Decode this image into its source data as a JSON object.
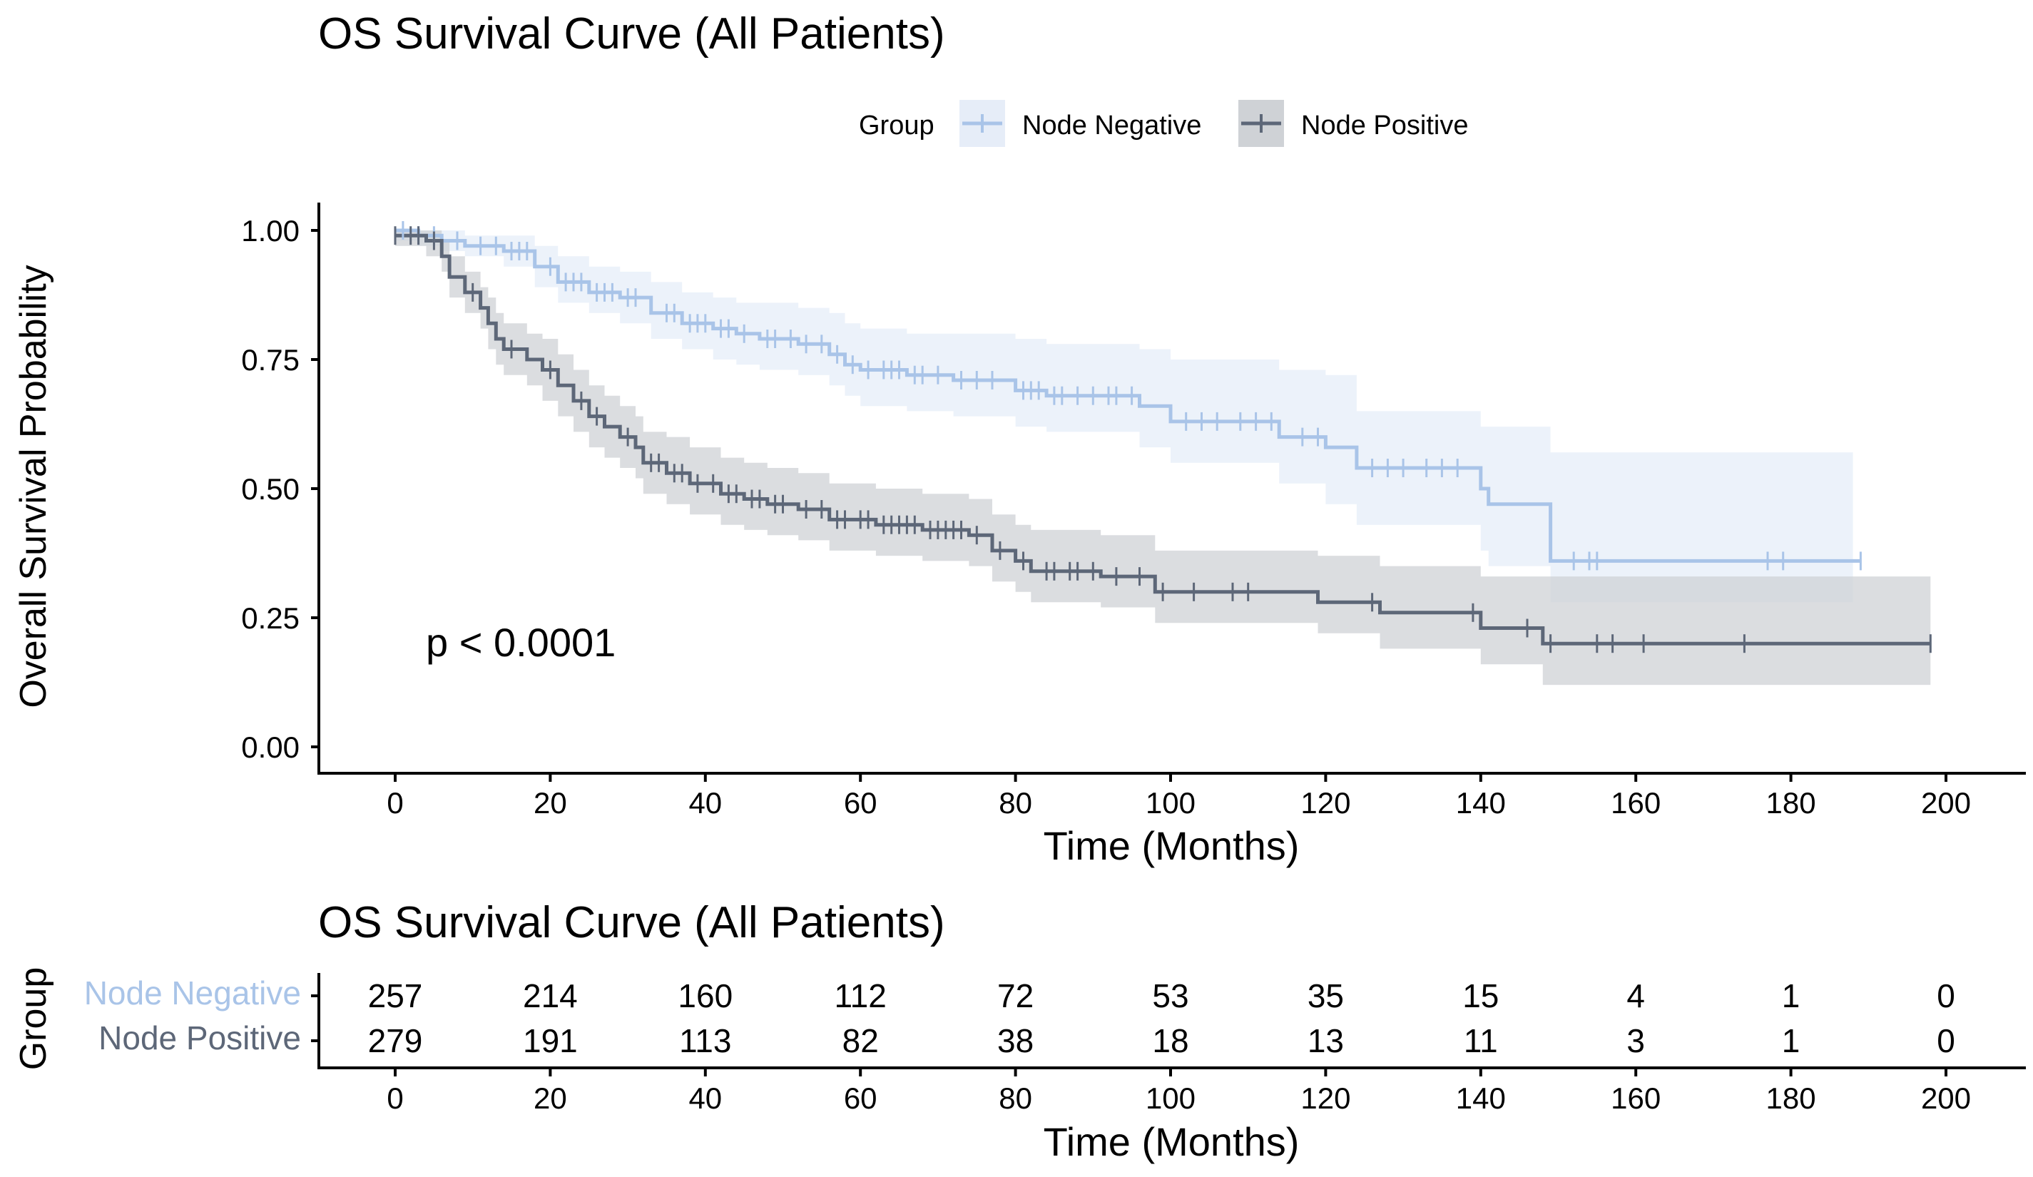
{
  "chart_data": [
    {
      "type": "line",
      "subtype": "kaplan-meier",
      "title": "OS Survival Curve (All Patients)",
      "xlabel": "Time (Months)",
      "ylabel": "Overall Survival Probability",
      "xlim": [
        0,
        200
      ],
      "ylim": [
        0,
        1
      ],
      "x_ticks": [
        "0",
        "20",
        "40",
        "60",
        "80",
        "100",
        "120",
        "140",
        "160",
        "180",
        "200"
      ],
      "y_ticks": [
        "0.00",
        "0.25",
        "0.50",
        "0.75",
        "1.00"
      ],
      "legend": {
        "title": "Group",
        "position": "top",
        "entries": [
          "Node Negative",
          "Node Positive"
        ]
      },
      "annotation": "p < 0.0001",
      "grid": false,
      "series": [
        {
          "name": "Node Negative",
          "color": "#a9c4e8",
          "band_color": "#e6edf8",
          "points": [
            [
              0,
              1.0
            ],
            [
              3,
              0.99
            ],
            [
              6,
              0.98
            ],
            [
              9,
              0.97
            ],
            [
              14,
              0.96
            ],
            [
              18,
              0.93
            ],
            [
              21,
              0.9
            ],
            [
              25,
              0.88
            ],
            [
              29,
              0.87
            ],
            [
              33,
              0.84
            ],
            [
              37,
              0.82
            ],
            [
              41,
              0.81
            ],
            [
              44,
              0.8
            ],
            [
              47,
              0.79
            ],
            [
              52,
              0.78
            ],
            [
              56,
              0.76
            ],
            [
              58,
              0.74
            ],
            [
              60,
              0.73
            ],
            [
              66,
              0.72
            ],
            [
              72,
              0.71
            ],
            [
              80,
              0.69
            ],
            [
              84,
              0.68
            ],
            [
              96,
              0.66
            ],
            [
              100,
              0.63
            ],
            [
              114,
              0.6
            ],
            [
              120,
              0.58
            ],
            [
              124,
              0.54
            ],
            [
              140,
              0.5
            ],
            [
              141,
              0.47
            ],
            [
              149,
              0.36
            ],
            [
              189,
              0.36
            ]
          ],
          "ci_upper": [
            [
              0,
              1.0
            ],
            [
              3,
              1.0
            ],
            [
              6,
              1.0
            ],
            [
              9,
              0.99
            ],
            [
              14,
              0.99
            ],
            [
              18,
              0.97
            ],
            [
              21,
              0.95
            ],
            [
              25,
              0.93
            ],
            [
              29,
              0.92
            ],
            [
              33,
              0.9
            ],
            [
              37,
              0.88
            ],
            [
              41,
              0.87
            ],
            [
              44,
              0.86
            ],
            [
              47,
              0.86
            ],
            [
              52,
              0.85
            ],
            [
              56,
              0.84
            ],
            [
              58,
              0.82
            ],
            [
              60,
              0.81
            ],
            [
              66,
              0.8
            ],
            [
              72,
              0.8
            ],
            [
              80,
              0.79
            ],
            [
              84,
              0.78
            ],
            [
              96,
              0.77
            ],
            [
              100,
              0.75
            ],
            [
              114,
              0.73
            ],
            [
              120,
              0.72
            ],
            [
              124,
              0.65
            ],
            [
              140,
              0.62
            ],
            [
              141,
              0.62
            ],
            [
              149,
              0.57
            ],
            [
              188,
              0.57
            ]
          ],
          "ci_lower": [
            [
              0,
              0.98
            ],
            [
              3,
              0.97
            ],
            [
              6,
              0.96
            ],
            [
              9,
              0.95
            ],
            [
              14,
              0.93
            ],
            [
              18,
              0.89
            ],
            [
              21,
              0.86
            ],
            [
              25,
              0.84
            ],
            [
              29,
              0.82
            ],
            [
              33,
              0.79
            ],
            [
              37,
              0.77
            ],
            [
              41,
              0.75
            ],
            [
              44,
              0.74
            ],
            [
              47,
              0.73
            ],
            [
              52,
              0.72
            ],
            [
              56,
              0.7
            ],
            [
              58,
              0.68
            ],
            [
              60,
              0.66
            ],
            [
              66,
              0.65
            ],
            [
              72,
              0.64
            ],
            [
              80,
              0.62
            ],
            [
              84,
              0.61
            ],
            [
              96,
              0.58
            ],
            [
              100,
              0.55
            ],
            [
              114,
              0.51
            ],
            [
              120,
              0.47
            ],
            [
              124,
              0.43
            ],
            [
              140,
              0.38
            ],
            [
              141,
              0.35
            ],
            [
              149,
              0.28
            ],
            [
              188,
              0.28
            ]
          ],
          "censor_times": [
            1,
            3,
            5,
            8,
            11,
            13,
            15,
            16,
            17,
            20,
            22,
            23,
            24,
            26,
            27,
            28,
            30,
            31,
            35,
            36,
            38,
            39,
            40,
            42,
            43,
            45,
            48,
            49,
            51,
            53,
            55,
            57,
            59,
            61,
            63,
            64,
            65,
            67,
            68,
            70,
            73,
            75,
            77,
            81,
            82,
            83,
            85,
            86,
            88,
            90,
            92,
            93,
            95,
            102,
            104,
            106,
            109,
            111,
            113,
            117,
            119,
            126,
            128,
            130,
            133,
            135,
            137,
            152,
            154,
            155,
            177,
            179,
            189
          ]
        },
        {
          "name": "Node Positive",
          "color": "#5d6778",
          "band_color": "#cfd2d6",
          "points": [
            [
              0,
              0.99
            ],
            [
              4,
              0.98
            ],
            [
              6,
              0.95
            ],
            [
              7,
              0.91
            ],
            [
              9,
              0.88
            ],
            [
              11,
              0.85
            ],
            [
              12,
              0.82
            ],
            [
              13,
              0.79
            ],
            [
              14,
              0.77
            ],
            [
              17,
              0.75
            ],
            [
              19,
              0.73
            ],
            [
              21,
              0.7
            ],
            [
              23,
              0.67
            ],
            [
              25,
              0.64
            ],
            [
              27,
              0.62
            ],
            [
              29,
              0.6
            ],
            [
              31,
              0.58
            ],
            [
              32,
              0.55
            ],
            [
              35,
              0.53
            ],
            [
              38,
              0.51
            ],
            [
              42,
              0.49
            ],
            [
              45,
              0.48
            ],
            [
              48,
              0.47
            ],
            [
              52,
              0.46
            ],
            [
              56,
              0.44
            ],
            [
              62,
              0.43
            ],
            [
              68,
              0.42
            ],
            [
              74,
              0.41
            ],
            [
              77,
              0.38
            ],
            [
              80,
              0.36
            ],
            [
              82,
              0.34
            ],
            [
              91,
              0.33
            ],
            [
              98,
              0.3
            ],
            [
              119,
              0.28
            ],
            [
              127,
              0.26
            ],
            [
              140,
              0.23
            ],
            [
              148,
              0.2
            ],
            [
              198,
              0.2
            ]
          ],
          "ci_upper": [
            [
              0,
              1.0
            ],
            [
              4,
              1.0
            ],
            [
              6,
              0.98
            ],
            [
              7,
              0.95
            ],
            [
              9,
              0.92
            ],
            [
              11,
              0.89
            ],
            [
              12,
              0.87
            ],
            [
              13,
              0.84
            ],
            [
              14,
              0.82
            ],
            [
              17,
              0.8
            ],
            [
              19,
              0.79
            ],
            [
              21,
              0.76
            ],
            [
              23,
              0.73
            ],
            [
              25,
              0.7
            ],
            [
              27,
              0.68
            ],
            [
              29,
              0.66
            ],
            [
              31,
              0.64
            ],
            [
              32,
              0.61
            ],
            [
              35,
              0.6
            ],
            [
              38,
              0.58
            ],
            [
              42,
              0.56
            ],
            [
              45,
              0.55
            ],
            [
              48,
              0.54
            ],
            [
              52,
              0.53
            ],
            [
              56,
              0.51
            ],
            [
              62,
              0.5
            ],
            [
              68,
              0.49
            ],
            [
              74,
              0.48
            ],
            [
              77,
              0.45
            ],
            [
              80,
              0.43
            ],
            [
              82,
              0.42
            ],
            [
              91,
              0.41
            ],
            [
              98,
              0.38
            ],
            [
              119,
              0.37
            ],
            [
              127,
              0.35
            ],
            [
              140,
              0.33
            ],
            [
              148,
              0.33
            ],
            [
              198,
              0.33
            ]
          ],
          "ci_lower": [
            [
              0,
              0.97
            ],
            [
              4,
              0.95
            ],
            [
              6,
              0.92
            ],
            [
              7,
              0.87
            ],
            [
              9,
              0.84
            ],
            [
              11,
              0.81
            ],
            [
              12,
              0.77
            ],
            [
              13,
              0.74
            ],
            [
              14,
              0.72
            ],
            [
              17,
              0.7
            ],
            [
              19,
              0.67
            ],
            [
              21,
              0.64
            ],
            [
              23,
              0.61
            ],
            [
              25,
              0.58
            ],
            [
              27,
              0.56
            ],
            [
              29,
              0.54
            ],
            [
              31,
              0.52
            ],
            [
              32,
              0.49
            ],
            [
              35,
              0.47
            ],
            [
              38,
              0.45
            ],
            [
              42,
              0.43
            ],
            [
              45,
              0.42
            ],
            [
              48,
              0.41
            ],
            [
              52,
              0.4
            ],
            [
              56,
              0.38
            ],
            [
              62,
              0.37
            ],
            [
              68,
              0.36
            ],
            [
              74,
              0.35
            ],
            [
              77,
              0.32
            ],
            [
              80,
              0.3
            ],
            [
              82,
              0.28
            ],
            [
              91,
              0.27
            ],
            [
              98,
              0.24
            ],
            [
              119,
              0.22
            ],
            [
              127,
              0.19
            ],
            [
              140,
              0.16
            ],
            [
              148,
              0.12
            ],
            [
              198,
              0.12
            ]
          ],
          "censor_times": [
            0,
            2,
            3,
            5,
            10,
            15,
            20,
            24,
            26,
            30,
            33,
            34,
            36,
            37,
            39,
            41,
            43,
            44,
            46,
            47,
            49,
            50,
            53,
            55,
            57,
            58,
            60,
            61,
            63,
            64,
            65,
            66,
            67,
            69,
            70,
            71,
            72,
            73,
            75,
            78,
            81,
            84,
            85,
            87,
            88,
            90,
            93,
            96,
            99,
            103,
            108,
            110,
            126,
            139,
            146,
            149,
            155,
            157,
            161,
            174,
            198
          ]
        }
      ]
    },
    {
      "type": "table",
      "title": "OS Survival Curve (All Patients)",
      "ylabel": "Group",
      "xlabel": "Time (Months)",
      "x_ticks": [
        "0",
        "20",
        "40",
        "60",
        "80",
        "100",
        "120",
        "140",
        "160",
        "180",
        "200"
      ],
      "rows": [
        {
          "name": "Node Negative",
          "color": "#a9c4e8",
          "values": [
            "257",
            "214",
            "160",
            "112",
            "72",
            "53",
            "35",
            "15",
            "4",
            "1",
            "0"
          ]
        },
        {
          "name": "Node Positive",
          "color": "#5d6778",
          "values": [
            "279",
            "191",
            "113",
            "82",
            "38",
            "18",
            "13",
            "11",
            "3",
            "1",
            "0"
          ]
        }
      ]
    }
  ]
}
